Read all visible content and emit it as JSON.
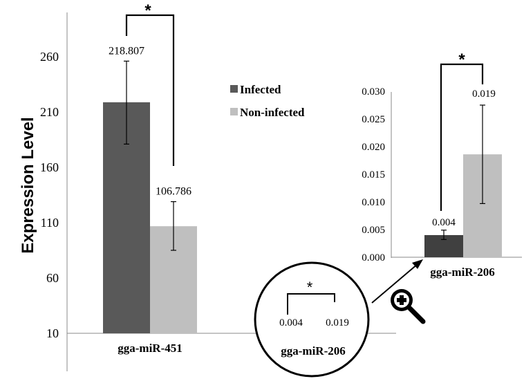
{
  "chart_data": [
    {
      "type": "bar",
      "ylabel": "Expression Level",
      "ylim": [
        -40,
        290
      ],
      "yticks": [
        "-40",
        "10",
        "60",
        "110",
        "160",
        "210",
        "260"
      ],
      "categories": [
        "gga-miR-451",
        "gga-miR-206"
      ],
      "series": [
        {
          "name": "Infected",
          "color": "#595959",
          "values": [
            218.807,
            0.004
          ],
          "error_low": [
            181,
            null
          ],
          "error_high": [
            256,
            null
          ]
        },
        {
          "name": "Non-infected",
          "color": "#bfbfbf",
          "values": [
            106.786,
            0.019
          ],
          "error_low": [
            85,
            null
          ],
          "error_high": [
            129,
            null
          ]
        }
      ],
      "value_labels": [
        "218.807",
        "106.786"
      ],
      "significance": "*",
      "legend": {
        "placement": "center-right",
        "entries": [
          "Infected",
          "Non-infected"
        ]
      },
      "grid": false
    },
    {
      "type": "bar",
      "ylim": [
        0,
        0.03
      ],
      "yticks": [
        "0.000",
        "0.005",
        "0.010",
        "0.015",
        "0.020",
        "0.025",
        "0.030"
      ],
      "categories": [
        "gga-miR-206"
      ],
      "series": [
        {
          "name": "Infected",
          "color": "#404040",
          "values": [
            0.004
          ],
          "error_low": [
            0.0032
          ],
          "error_high": [
            0.0049
          ]
        },
        {
          "name": "Non-infected",
          "color": "#bfbfbf",
          "values": [
            0.0186
          ],
          "error_low": [
            0.0097
          ],
          "error_high": [
            0.0275
          ]
        }
      ],
      "value_labels": [
        "0.004",
        "0.019"
      ],
      "significance": "*",
      "grid": false
    }
  ],
  "zoom_circle": {
    "values": [
      "0.004",
      "0.019"
    ],
    "category": "gga-miR-206",
    "significance": "*"
  },
  "icons": {
    "zoom": "magnifier-plus-icon"
  }
}
